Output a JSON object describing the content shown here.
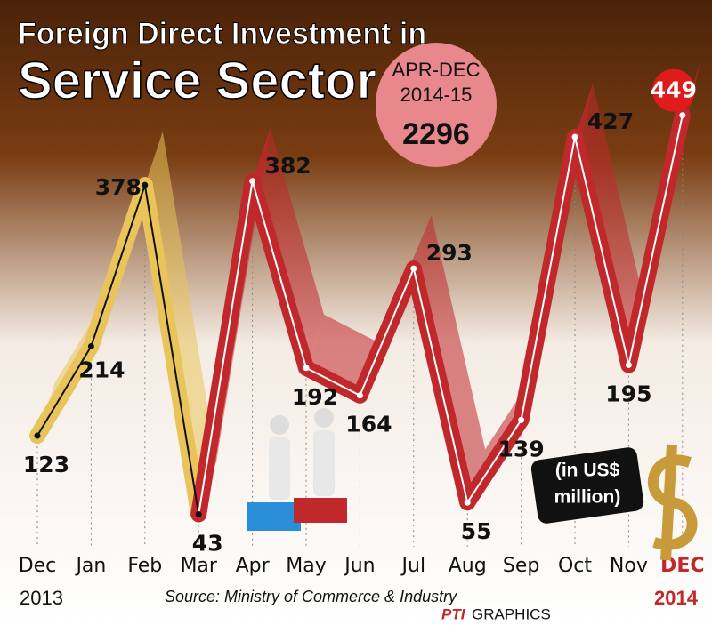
{
  "chart_data": {
    "type": "line",
    "title": [
      "Foreign Direct Investment in",
      "Service Sector"
    ],
    "badge": {
      "period": [
        "APR-DEC",
        "2014-15"
      ],
      "total": "2296"
    },
    "unit": [
      "(in US$",
      "million)"
    ],
    "categories": [
      "Dec",
      "Jan",
      "Feb",
      "Mar",
      "Apr",
      "May",
      "Jun",
      "Jul",
      "Aug",
      "Sep",
      "Oct",
      "Nov",
      "DEC"
    ],
    "values": [
      123,
      214,
      378,
      43,
      382,
      192,
      164,
      293,
      55,
      139,
      427,
      195,
      449
    ],
    "colors": [
      "#e8c45a",
      "#e8c45a",
      "#e8c45a",
      "#e8c45a",
      "#c0282c",
      "#c0282c",
      "#c0282c",
      "#c0282c",
      "#c0282c",
      "#c0282c",
      "#c0282c",
      "#c0282c",
      "#c0282c"
    ],
    "years": [
      "2013",
      "2014"
    ],
    "source": "Source: Ministry of Commerce & Industry",
    "credit": [
      "PTI",
      "GRAPHICS"
    ],
    "ylim": [
      0,
      560
    ]
  }
}
